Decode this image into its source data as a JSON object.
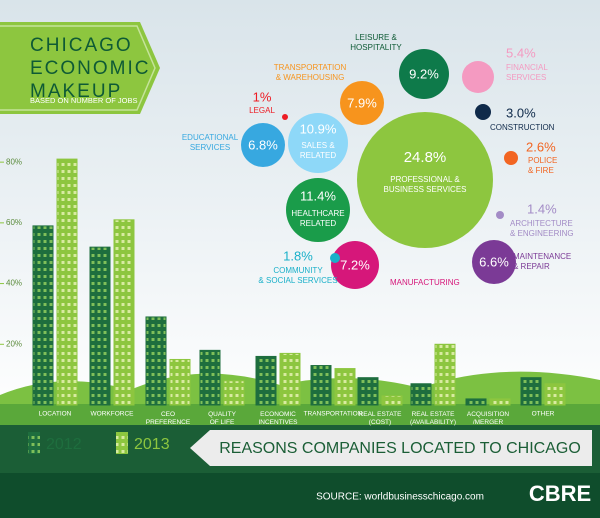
{
  "header": {
    "title": "CHICAGO\nECONOMIC\nMAKEUP",
    "subtitle": "BASED ON NUMBER OF JOBS"
  },
  "chart_data": [
    {
      "type": "bubble",
      "categories": [
        "PROFESSIONAL &\nBUSINESS SERVICES",
        "LEISURE &\nHOSPITALITY",
        "FINANCIAL\nSERVICES",
        "CONSTRUCTION",
        "POLICE\n& FIRE",
        "ARCHITECTURE\n& ENGINEERING",
        "MAINTENANCE\n& REPAIR",
        "MANUFACTURING",
        "COMMUNITY\n& SOCIAL SERVICES",
        "HEALTHCARE\nRELATED",
        "SALES &\nRELATED",
        "EDUCATIONAL\nSERVICES",
        "LEGAL",
        "TRANSPORTATION\n& WAREHOUSING"
      ],
      "values": [
        24.8,
        9.2,
        5.4,
        3.0,
        2.6,
        1.4,
        6.6,
        7.2,
        1.8,
        11.4,
        10.9,
        6.8,
        1,
        7.9
      ],
      "value_labels": [
        "24.8%",
        "9.2%",
        "5.4%",
        "3.0%",
        "2.6%",
        "1.4%",
        "6.6%",
        "7.2%",
        "1.8%",
        "11.4%",
        "10.9%",
        "6.8%",
        "1%",
        "7.9%"
      ],
      "colors": [
        "#8dc63f",
        "#0e7a4a",
        "#f49ac1",
        "#0f2a4a",
        "#f26522",
        "#a38cc6",
        "#7b3a96",
        "#d6177a",
        "#1ab0c9",
        "#1a9c4a",
        "#8ed8f8",
        "#37a8e0",
        "#ed1c24",
        "#f7941d"
      ]
    },
    {
      "type": "bar",
      "title": "REASONS COMPANIES LOCATED TO CHICAGO",
      "categories": [
        "LOCATION",
        "WORKFORCE",
        "CEO\nPREFERENCE",
        "QUALITY\nOF LIFE",
        "ECONOMIC\nINCENTIVES",
        "TRANSPORTATION",
        "REAL ESTATE\n(COST)",
        "REAL ESTATE\n(AVAILABILITY)",
        "ACQUISITION\n/MERGER",
        "OTHER"
      ],
      "series": [
        {
          "name": "2012",
          "color": "#1e6e3e",
          "values": [
            59,
            52,
            29,
            18,
            16,
            13,
            9,
            7,
            2,
            9
          ]
        },
        {
          "name": "2013",
          "color": "#8dc63f",
          "values": [
            81,
            61,
            15,
            8,
            17,
            12,
            3,
            20,
            2,
            7
          ]
        }
      ],
      "ylim": [
        0,
        84
      ],
      "yticks": [
        {
          "value": 20,
          "label": "20%"
        },
        {
          "value": 40,
          "label": "40%"
        },
        {
          "value": 60,
          "label": "60%"
        },
        {
          "value": 80,
          "label": "80%"
        }
      ]
    }
  ],
  "footer": {
    "source": "SOURCE: worldbusinesschicago.com",
    "logo": "CBRE"
  }
}
